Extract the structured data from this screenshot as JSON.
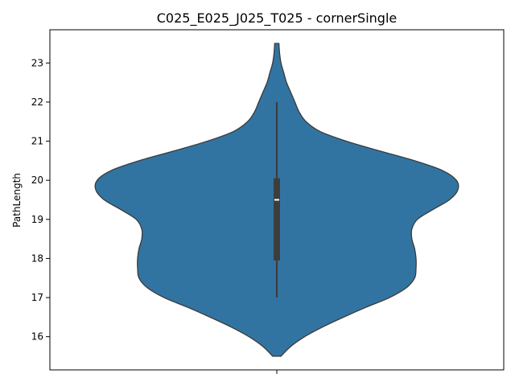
{
  "chart_data": {
    "type": "violin",
    "title": "C025_E025_J025_T025 - cornerSingle",
    "xlabel": "",
    "ylabel": "PathLength",
    "ylim": [
      15.15,
      23.85
    ],
    "yticks": [
      16,
      17,
      18,
      19,
      20,
      21,
      22,
      23
    ],
    "grid": false,
    "violin_color": "#3274a1",
    "edge_color": "#3a3a3a",
    "density_profile": [
      {
        "y": 15.5,
        "half_width": 0.03
      },
      {
        "y": 15.75,
        "half_width": 0.1
      },
      {
        "y": 16.0,
        "half_width": 0.2
      },
      {
        "y": 16.25,
        "half_width": 0.33
      },
      {
        "y": 16.5,
        "half_width": 0.48
      },
      {
        "y": 16.75,
        "half_width": 0.64
      },
      {
        "y": 17.0,
        "half_width": 0.81
      },
      {
        "y": 17.25,
        "half_width": 0.93
      },
      {
        "y": 17.5,
        "half_width": 0.99
      },
      {
        "y": 17.75,
        "half_width": 1.0
      },
      {
        "y": 18.0,
        "half_width": 1.0
      },
      {
        "y": 18.25,
        "half_width": 0.99
      },
      {
        "y": 18.5,
        "half_width": 0.97
      },
      {
        "y": 18.75,
        "half_width": 0.97
      },
      {
        "y": 19.0,
        "half_width": 1.01
      },
      {
        "y": 19.25,
        "half_width": 1.12
      },
      {
        "y": 19.5,
        "half_width": 1.24
      },
      {
        "y": 19.75,
        "half_width": 1.3
      },
      {
        "y": 20.0,
        "half_width": 1.29
      },
      {
        "y": 20.25,
        "half_width": 1.19
      },
      {
        "y": 20.5,
        "half_width": 0.99
      },
      {
        "y": 20.75,
        "half_width": 0.74
      },
      {
        "y": 21.0,
        "half_width": 0.5
      },
      {
        "y": 21.25,
        "half_width": 0.31
      },
      {
        "y": 21.5,
        "half_width": 0.21
      },
      {
        "y": 21.75,
        "half_width": 0.16
      },
      {
        "y": 22.0,
        "half_width": 0.13
      },
      {
        "y": 22.25,
        "half_width": 0.1
      },
      {
        "y": 22.5,
        "half_width": 0.07
      },
      {
        "y": 22.75,
        "half_width": 0.05
      },
      {
        "y": 23.0,
        "half_width": 0.03
      },
      {
        "y": 23.25,
        "half_width": 0.02
      },
      {
        "y": 23.5,
        "half_width": 0.015
      }
    ],
    "box": {
      "whisker_low": 17,
      "q1": 17.95,
      "median": 19.5,
      "q3": 20.05,
      "whisker_high": 22
    }
  }
}
